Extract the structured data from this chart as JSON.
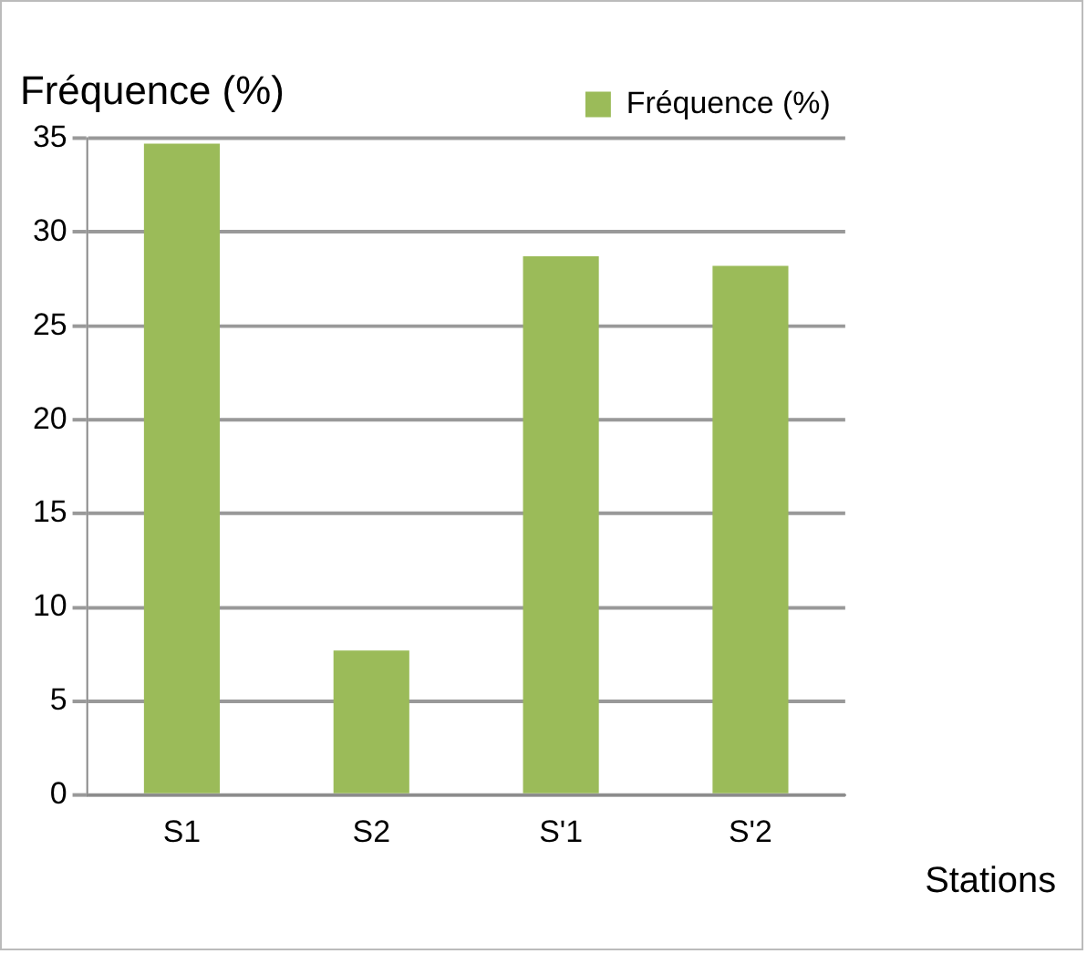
{
  "chart_data": {
    "type": "bar",
    "ylabel": "Fréquence (%)",
    "xlabel": "Stations",
    "categories": [
      "S1",
      "S2",
      "S'1",
      "S'2"
    ],
    "series": [
      {
        "name": "Fréquence (%)",
        "color": "#9bbb59",
        "values": [
          34.7,
          7.7,
          28.7,
          28.2
        ]
      }
    ],
    "ylim": [
      0,
      35
    ],
    "yticks": [
      0,
      5,
      10,
      15,
      20,
      25,
      30,
      35
    ],
    "grid": "y",
    "legend": "top right"
  }
}
